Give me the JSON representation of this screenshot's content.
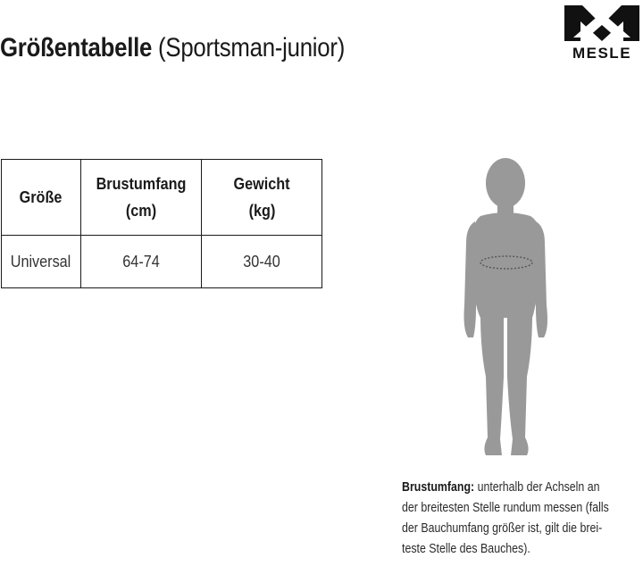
{
  "header": {
    "title_bold": "Größentabelle",
    "title_light": "(Sportsman-junior)"
  },
  "brand": {
    "logo_text": "MESLE",
    "logo_icon": "mesle-m-logo-icon"
  },
  "table": {
    "headers": [
      [
        "Größe"
      ],
      [
        "Brustumfang",
        "(cm)"
      ],
      [
        "Gewicht",
        "(kg)"
      ]
    ],
    "rows": [
      [
        "Universal",
        "64-74",
        "30-40"
      ]
    ]
  },
  "figure": {
    "icon": "child-silhouette-icon",
    "color": "#999999",
    "measure_line_color": "#555555"
  },
  "note": {
    "term": "Brustumfang:",
    "lines": [
      " unterhalb der Achseln an",
      "der breitesten Stelle rundum messen (falls",
      "der Bauchumfang größer ist, gilt die brei-",
      "teste Stelle des Bauches)."
    ]
  }
}
